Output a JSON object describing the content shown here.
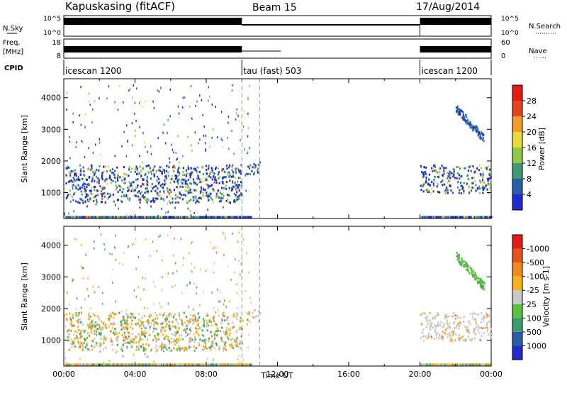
{
  "header": {
    "station": "Kapuskasing (fitACF)",
    "beam": "Beam 15",
    "date": "17/Aug/2014"
  },
  "summary_panels": {
    "nsky_label": "N.Sky",
    "nsky_ticks": [
      "10^5",
      "10^0"
    ],
    "nsearch_label": "N.Search",
    "freq_label": "Freq.",
    "freq_unit": "[MHz]",
    "freq_ticks": [
      "18",
      "8"
    ],
    "nave_label": "Nave",
    "nave_ticks": [
      "60",
      "0"
    ],
    "cpid_label": "CPID",
    "cpid_segments": [
      {
        "label": "icescan 1200",
        "start_hour": 0,
        "end_hour": 10
      },
      {
        "label": "tau (fast) 503",
        "start_hour": 10,
        "end_hour": 20
      },
      {
        "label": "icescan 1200",
        "start_hour": 20,
        "end_hour": 24
      }
    ]
  },
  "chart_data": [
    {
      "type": "heatmap",
      "quantity": "Power",
      "ylabel": "Slant Range [km]",
      "ylim": [
        180,
        4600
      ],
      "yticks": [
        1000,
        2000,
        3000,
        4000
      ],
      "xlim": [
        0,
        24
      ],
      "colorbar": {
        "label": "Power [dB]",
        "levels": [
          "4",
          "8",
          "12",
          "16",
          "20",
          "24",
          "28"
        ],
        "colors": [
          "#1f2ad1",
          "#2a5ca8",
          "#3d9b74",
          "#8fc94a",
          "#e8dc3a",
          "#f29b2a",
          "#e5431f",
          "#e41a14"
        ]
      },
      "echo_regions": [
        {
          "start_hour": 0.1,
          "end_hour": 10.0,
          "range_min": 700,
          "range_max": 1900,
          "level": "mixed"
        },
        {
          "start_hour": 10.2,
          "end_hour": 11.0,
          "range_min": 1600,
          "range_max": 2000,
          "level": "low"
        },
        {
          "start_hour": 20.0,
          "end_hour": 24.0,
          "range_min": 1000,
          "range_max": 1900,
          "level": "mixed"
        },
        {
          "start_hour": 22.0,
          "end_hour": 23.6,
          "range_min": 2700,
          "range_max": 3700,
          "level": "low"
        }
      ]
    },
    {
      "type": "heatmap",
      "quantity": "Velocity",
      "ylabel": "Slant Range [km]",
      "ylim": [
        180,
        4600
      ],
      "yticks": [
        1000,
        2000,
        3000,
        4000
      ],
      "xlim": [
        0,
        24
      ],
      "xticks": [
        "00:00",
        "04:00",
        "08:00",
        "12:00",
        "16:00",
        "20:00",
        "00:00"
      ],
      "xlabel": "Time UT",
      "colorbar": {
        "label": "Velocity [m s-1]",
        "levels": [
          "1000",
          "500",
          "100",
          "25",
          "-25",
          "-100",
          "-500",
          "-1000"
        ],
        "colors": [
          "#1f2ad1",
          "#2a5ca8",
          "#3d9b74",
          "#5ac23a",
          "#c8c8c8",
          "#f5b21c",
          "#f08a1c",
          "#e8531d",
          "#e41a14"
        ]
      },
      "echo_regions": [
        {
          "start_hour": 0.1,
          "end_hour": 10.0,
          "range_min": 700,
          "range_max": 1900,
          "level": "mixed"
        },
        {
          "start_hour": 10.2,
          "end_hour": 11.0,
          "range_min": 1600,
          "range_max": 2000,
          "level": "ground"
        },
        {
          "start_hour": 20.0,
          "end_hour": 24.0,
          "range_min": 1000,
          "range_max": 1900,
          "level": "ground"
        },
        {
          "start_hour": 22.0,
          "end_hour": 23.6,
          "range_min": 2700,
          "range_max": 3700,
          "level": "positive"
        }
      ]
    }
  ]
}
